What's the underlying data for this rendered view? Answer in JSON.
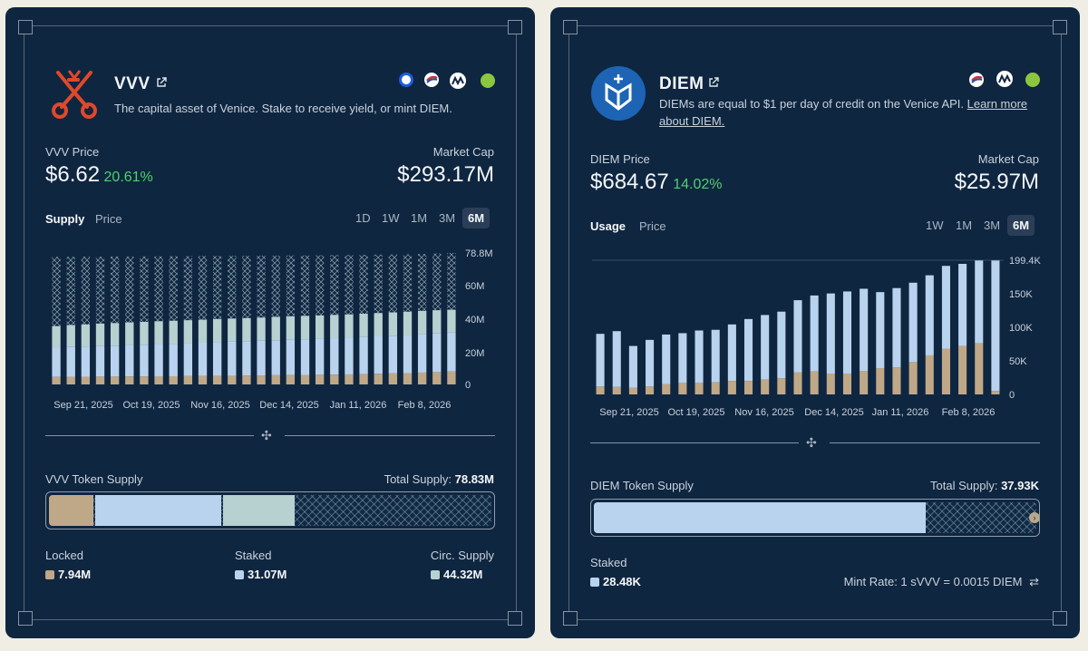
{
  "colors": {
    "locked": "#bfa888",
    "staked": "#b9d3ee",
    "circ": "#b6d1d0",
    "hatch": "#8aa0b6",
    "bg": "#0f2640",
    "green": "#4fd16d"
  },
  "vvv": {
    "title": "VVV",
    "link_icon": "external-link-icon",
    "description": "The capital asset of Venice. Stake to receive yield, or mint DIEM.",
    "price_label": "VVV Price",
    "price": "$6.62",
    "price_change": "20.61%",
    "mcap_label": "Market Cap",
    "mcap": "$293.17M",
    "tabs": [
      "Supply",
      "Price"
    ],
    "ranges": [
      "1D",
      "1W",
      "1M",
      "3M",
      "6M"
    ],
    "active_range": "6M",
    "supply_title": "VVV Token Supply",
    "total_label": "Total Supply:",
    "total_value": "78.83M",
    "legend": [
      {
        "name": "Locked",
        "value": "7.94M"
      },
      {
        "name": "Staked",
        "value": "31.07M"
      },
      {
        "name": "Circ. Supply",
        "value": "44.32M"
      }
    ],
    "bar_fractions": {
      "locked": 0.1,
      "staked": 0.29,
      "circ": 0.165
    },
    "chain_icons": [
      "coinbase-icon",
      "etherscan-icon",
      "coinmarketcap-icon",
      "coingecko-icon"
    ]
  },
  "diem": {
    "title": "DIEM",
    "link_icon": "external-link-icon",
    "description": "DIEMs are equal to $1 per day of credit on the Venice API.",
    "learn_more": "Learn more about DIEM.",
    "price_label": "DIEM Price",
    "price": "$684.67",
    "price_change": "14.02%",
    "mcap_label": "Market Cap",
    "mcap": "$25.97M",
    "tabs": [
      "Usage",
      "Price"
    ],
    "ranges": [
      "1W",
      "1M",
      "3M",
      "6M"
    ],
    "active_range": "6M",
    "supply_title": "DIEM Token Supply",
    "total_label": "Total Supply:",
    "total_value": "37.93K",
    "legend": [
      {
        "name": "Staked",
        "value": "28.48K"
      }
    ],
    "mint_rate": "Mint Rate: 1 sVVV = 0.0015 DIEM",
    "bar_fractions": {
      "staked": 0.75
    },
    "chain_icons": [
      "etherscan-icon",
      "coinmarketcap-icon",
      "coingecko-icon"
    ]
  },
  "chart_data": [
    {
      "type": "bar",
      "title": "",
      "xlabel": "",
      "ylabel": "",
      "x_tick_labels": [
        "Sep 21, 2025",
        "Oct 19, 2025",
        "Nov 16, 2025",
        "Dec 14, 2025",
        "Jan 11, 2026",
        "Feb 8, 2026"
      ],
      "y_tick_labels": [
        "78.8M",
        "60M",
        "40M",
        "20M",
        "0"
      ],
      "ylim": [
        0,
        78.8
      ],
      "unit": "M",
      "series": [
        {
          "name": "Locked",
          "values": [
            4.5,
            4.6,
            4.6,
            4.7,
            4.7,
            4.8,
            4.8,
            4.9,
            4.9,
            5.0,
            5.0,
            5.1,
            5.2,
            5.3,
            5.4,
            5.5,
            5.6,
            5.7,
            5.8,
            5.9,
            6.0,
            6.2,
            6.4,
            6.6,
            6.8,
            7.1,
            7.4,
            7.7
          ]
        },
        {
          "name": "Staked",
          "values": [
            17.5,
            17.8,
            18.0,
            18.3,
            18.5,
            18.8,
            19.0,
            19.3,
            19.5,
            19.7,
            20.0,
            20.2,
            20.4,
            20.6,
            20.8,
            21.0,
            21.2,
            21.4,
            21.6,
            21.8,
            22.0,
            22.2,
            22.4,
            22.6,
            22.8,
            23.0,
            23.2,
            23.4
          ]
        },
        {
          "name": "Circ. Supply",
          "values": [
            13.0,
            13.2,
            13.4,
            13.5,
            13.6,
            13.6,
            13.7,
            13.7,
            13.8,
            13.8,
            13.8,
            13.9,
            13.9,
            13.9,
            13.9,
            14.0,
            14.0,
            14.0,
            14.0,
            14.0,
            14.0,
            14.0,
            14.0,
            14.0,
            14.0,
            14.0,
            13.9,
            13.7
          ]
        },
        {
          "name": "Total Supply",
          "values": [
            76.5,
            76.5,
            76.6,
            76.6,
            76.7,
            76.7,
            76.8,
            76.8,
            76.9,
            76.9,
            77.0,
            77.0,
            77.1,
            77.1,
            77.2,
            77.2,
            77.3,
            77.3,
            77.4,
            77.5,
            77.6,
            77.7,
            77.8,
            77.9,
            78.0,
            78.2,
            78.5,
            78.8
          ]
        }
      ]
    },
    {
      "type": "bar",
      "title": "",
      "xlabel": "",
      "ylabel": "",
      "x_tick_labels": [
        "Sep 21, 2025",
        "Oct 19, 2025",
        "Nov 16, 2025",
        "Dec 14, 2025",
        "Jan 11, 2026",
        "Feb 8, 2026"
      ],
      "y_tick_labels": [
        "199.4K",
        "150K",
        "100K",
        "50K",
        "0"
      ],
      "ylim": [
        0,
        199.4
      ],
      "unit": "K",
      "series": [
        {
          "name": "Staked",
          "values": [
            90,
            94,
            72,
            81,
            89,
            91,
            95,
            96,
            104,
            112,
            118,
            123,
            140,
            147,
            150,
            153,
            157,
            152,
            158,
            166,
            177,
            191,
            194,
            199,
            199
          ]
        },
        {
          "name": "Locked",
          "values": [
            12,
            11,
            10,
            12,
            15,
            17,
            17,
            18,
            20,
            20,
            22,
            24,
            33,
            34,
            31,
            31,
            35,
            39,
            40,
            48,
            58,
            68,
            72,
            76,
            5
          ]
        }
      ]
    }
  ]
}
